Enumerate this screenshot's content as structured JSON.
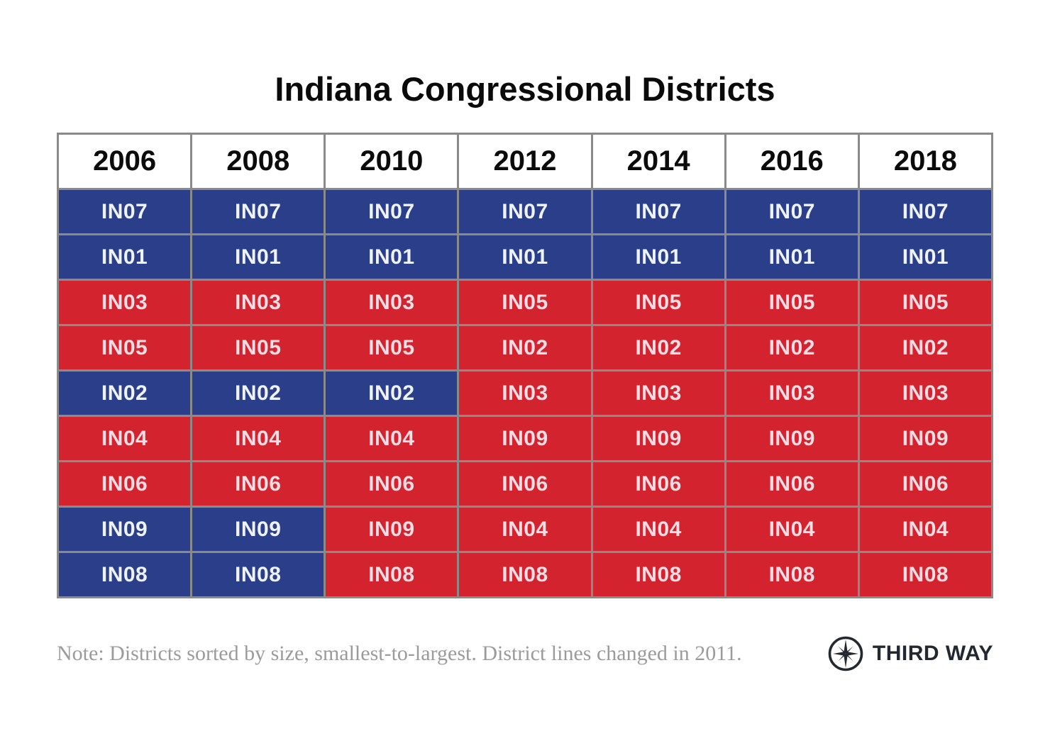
{
  "title": "Indiana Congressional Districts",
  "note": "Note: Districts sorted by size, smallest-to-largest. District lines changed in 2011.",
  "logo_text": "THIRD WAY",
  "icons": {
    "compass": "compass-rose-icon"
  },
  "colors": {
    "democrat_blue": "#2B3E8A",
    "republican_red": "#D2232E",
    "blue_cell_text": "#EEF2FB",
    "red_cell_text": "#F8DCE4",
    "grid_border": "#8A8A8A",
    "note_gray": "#9B9B9B",
    "logo_dark": "#23272E",
    "title_black": "#0A0A0A"
  },
  "chart_data": {
    "type": "table",
    "title": "Indiana Congressional Districts",
    "note": "Note: Districts sorted by size, smallest-to-largest. District lines changed in 2011.",
    "party_color_meaning": {
      "D": "#2B3E8A",
      "R": "#D2232E"
    },
    "columns": [
      "2006",
      "2008",
      "2010",
      "2012",
      "2014",
      "2016",
      "2018"
    ],
    "rows": [
      [
        {
          "district": "IN07",
          "party": "D"
        },
        {
          "district": "IN07",
          "party": "D"
        },
        {
          "district": "IN07",
          "party": "D"
        },
        {
          "district": "IN07",
          "party": "D"
        },
        {
          "district": "IN07",
          "party": "D"
        },
        {
          "district": "IN07",
          "party": "D"
        },
        {
          "district": "IN07",
          "party": "D"
        }
      ],
      [
        {
          "district": "IN01",
          "party": "D"
        },
        {
          "district": "IN01",
          "party": "D"
        },
        {
          "district": "IN01",
          "party": "D"
        },
        {
          "district": "IN01",
          "party": "D"
        },
        {
          "district": "IN01",
          "party": "D"
        },
        {
          "district": "IN01",
          "party": "D"
        },
        {
          "district": "IN01",
          "party": "D"
        }
      ],
      [
        {
          "district": "IN03",
          "party": "R"
        },
        {
          "district": "IN03",
          "party": "R"
        },
        {
          "district": "IN03",
          "party": "R"
        },
        {
          "district": "IN05",
          "party": "R"
        },
        {
          "district": "IN05",
          "party": "R"
        },
        {
          "district": "IN05",
          "party": "R"
        },
        {
          "district": "IN05",
          "party": "R"
        }
      ],
      [
        {
          "district": "IN05",
          "party": "R"
        },
        {
          "district": "IN05",
          "party": "R"
        },
        {
          "district": "IN05",
          "party": "R"
        },
        {
          "district": "IN02",
          "party": "R"
        },
        {
          "district": "IN02",
          "party": "R"
        },
        {
          "district": "IN02",
          "party": "R"
        },
        {
          "district": "IN02",
          "party": "R"
        }
      ],
      [
        {
          "district": "IN02",
          "party": "D"
        },
        {
          "district": "IN02",
          "party": "D"
        },
        {
          "district": "IN02",
          "party": "D"
        },
        {
          "district": "IN03",
          "party": "R"
        },
        {
          "district": "IN03",
          "party": "R"
        },
        {
          "district": "IN03",
          "party": "R"
        },
        {
          "district": "IN03",
          "party": "R"
        }
      ],
      [
        {
          "district": "IN04",
          "party": "R"
        },
        {
          "district": "IN04",
          "party": "R"
        },
        {
          "district": "IN04",
          "party": "R"
        },
        {
          "district": "IN09",
          "party": "R"
        },
        {
          "district": "IN09",
          "party": "R"
        },
        {
          "district": "IN09",
          "party": "R"
        },
        {
          "district": "IN09",
          "party": "R"
        }
      ],
      [
        {
          "district": "IN06",
          "party": "R"
        },
        {
          "district": "IN06",
          "party": "R"
        },
        {
          "district": "IN06",
          "party": "R"
        },
        {
          "district": "IN06",
          "party": "R"
        },
        {
          "district": "IN06",
          "party": "R"
        },
        {
          "district": "IN06",
          "party": "R"
        },
        {
          "district": "IN06",
          "party": "R"
        }
      ],
      [
        {
          "district": "IN09",
          "party": "D"
        },
        {
          "district": "IN09",
          "party": "D"
        },
        {
          "district": "IN09",
          "party": "R"
        },
        {
          "district": "IN04",
          "party": "R"
        },
        {
          "district": "IN04",
          "party": "R"
        },
        {
          "district": "IN04",
          "party": "R"
        },
        {
          "district": "IN04",
          "party": "R"
        }
      ],
      [
        {
          "district": "IN08",
          "party": "D"
        },
        {
          "district": "IN08",
          "party": "D"
        },
        {
          "district": "IN08",
          "party": "R"
        },
        {
          "district": "IN08",
          "party": "R"
        },
        {
          "district": "IN08",
          "party": "R"
        },
        {
          "district": "IN08",
          "party": "R"
        },
        {
          "district": "IN08",
          "party": "R"
        }
      ]
    ]
  }
}
